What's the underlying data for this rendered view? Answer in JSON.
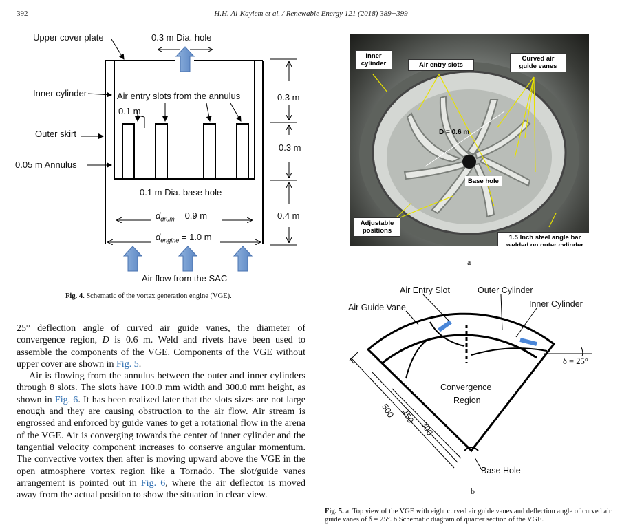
{
  "header": {
    "page_number": "392",
    "journal": "H.H. Al-Kayiem et al. / Renewable Energy 121 (2018) 389−399"
  },
  "fig4": {
    "labels": {
      "upper_cover_plate": "Upper cover plate",
      "dia_hole": "0.3 m Dia. hole",
      "inner_cylinder": "Inner cylinder",
      "air_entry_slots": "Air entry slots from the annulus",
      "slot_width": "0.1 m",
      "outer_skirt": "Outer skirt",
      "annulus": "0.05 m Annulus",
      "base_hole": "0.1 m Dia. base hole",
      "d_drum_sym": "d",
      "d_drum_sub": "drum",
      "d_drum_val": "= 0.9 m",
      "d_engine_sym": "d",
      "d_engine_sub": "engine",
      "d_engine_val": "= 1.0 m",
      "h1": "0.3 m",
      "h2": "0.3 m",
      "h3": "0.4 m",
      "air_flow": "Air flow from the SAC"
    },
    "caption_bold": "Fig. 4.",
    "caption_text": "Schematic of the vortex generation engine (VGE)."
  },
  "fig5a": {
    "callouts": {
      "inner_cylinder": "Inner cylinder",
      "air_entry_slots": "Air entry slots",
      "curved_vanes": "Curved air guide vanes",
      "diameter": "D = 0.6 m",
      "base_hole": "Base hole",
      "adjustable": "Adjustable positions",
      "angle_bar": "1.5 Inch steel angle bar welded on outer cylinder"
    },
    "sublabel": "a"
  },
  "fig5b": {
    "labels": {
      "air_entry_slot": "Air Entry Slot",
      "outer_cylinder": "Outer Cylinder",
      "inner_cylinder": "Inner Cylinder",
      "air_guide_vane": "Air Guide Vane",
      "angle": "δ = 25°",
      "convergence_1": "Convergence",
      "convergence_2": "Region",
      "r500": "500",
      "r450": "450",
      "r300": "300",
      "base_hole": "Base Hole"
    },
    "sublabel": "b"
  },
  "fig5_caption": {
    "bold": "Fig. 5.",
    "text": "a. Top view of the VGE with eight curved air guide vanes and deflection angle of curved air guide vanes of δ = 25°. b.Schematic diagram of quarter section of the VGE."
  },
  "body": {
    "p1_a": "25° deflection angle of curved air guide vanes, the diameter of convergence region, ",
    "p1_d": "D",
    "p1_b": " is 0.6 m. Weld and rivets have been used to assemble the components of the VGE. Components of the VGE without upper cover are shown in ",
    "p1_ref": "Fig. 5",
    "p1_c": ".",
    "p2_a": "Air is flowing from the annulus between the outer and inner cylinders through 8 slots. The slots have 100.0 mm width and 300.0 mm height, as shown in ",
    "p2_ref1": "Fig. 6",
    "p2_b": ". It has been realized later that the slots sizes are not large enough and they are causing obstruction to the air flow. Air stream is engrossed and enforced by guide vanes to get a rotational flow in the arena of the VGE. Air is converging towards the center of inner cylinder and the tangential velocity component increases to conserve angular momentum. The convective vortex then after is moving upward above the VGE in the open atmosphere vortex region like a Tornado. The slot/guide vanes arrangement is pointed out in ",
    "p2_ref2": "Fig. 6",
    "p2_c": ", where the air deflector is moved away from the actual position to show the situation in clear view."
  }
}
